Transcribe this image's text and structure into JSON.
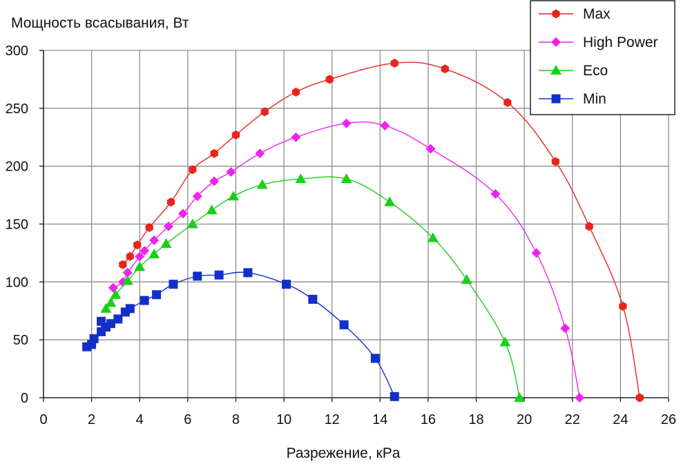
{
  "chart_data": {
    "type": "line",
    "title": "",
    "ylabel": "Мощность всасывания, Вт",
    "xlabel": "Разрежение, кPa",
    "xlim": [
      0,
      26
    ],
    "ylim": [
      0,
      300
    ],
    "x_ticks": [
      0,
      2,
      4,
      6,
      8,
      10,
      12,
      14,
      16,
      18,
      20,
      22,
      24,
      26
    ],
    "y_ticks": [
      0,
      50,
      100,
      150,
      200,
      250,
      300
    ],
    "grid": true,
    "legend_position": "top-right",
    "series": [
      {
        "name": "Max",
        "color": "#e8251a",
        "marker": "hexagon",
        "points": [
          [
            3.3,
            115
          ],
          [
            3.6,
            122
          ],
          [
            3.9,
            132
          ],
          [
            4.4,
            147
          ],
          [
            5.3,
            169
          ],
          [
            6.2,
            197
          ],
          [
            7.1,
            211
          ],
          [
            8.0,
            227
          ],
          [
            9.2,
            247
          ],
          [
            10.5,
            264
          ],
          [
            11.9,
            275
          ],
          [
            14.6,
            289
          ],
          [
            16.7,
            284
          ],
          [
            19.3,
            255
          ],
          [
            21.3,
            204
          ],
          [
            22.7,
            148
          ],
          [
            24.1,
            79
          ],
          [
            24.8,
            0
          ]
        ]
      },
      {
        "name": "High Power",
        "color": "#ee22ee",
        "marker": "diamond",
        "points": [
          [
            2.9,
            95
          ],
          [
            3.3,
            100
          ],
          [
            3.5,
            108
          ],
          [
            4.0,
            122
          ],
          [
            4.2,
            127
          ],
          [
            4.6,
            136
          ],
          [
            5.2,
            148
          ],
          [
            5.8,
            159
          ],
          [
            6.4,
            174
          ],
          [
            7.1,
            187
          ],
          [
            7.8,
            195
          ],
          [
            9.0,
            211
          ],
          [
            10.5,
            225
          ],
          [
            12.6,
            237
          ],
          [
            14.2,
            235
          ],
          [
            16.1,
            215
          ],
          [
            18.8,
            176
          ],
          [
            20.5,
            125
          ],
          [
            21.7,
            60
          ],
          [
            22.3,
            0
          ]
        ]
      },
      {
        "name": "Eco",
        "color": "#18d018",
        "marker": "triangle",
        "points": [
          [
            2.6,
            77
          ],
          [
            2.8,
            82
          ],
          [
            3.0,
            89
          ],
          [
            3.5,
            101
          ],
          [
            4.0,
            113
          ],
          [
            4.6,
            124
          ],
          [
            5.1,
            133
          ],
          [
            6.2,
            150
          ],
          [
            7.0,
            162
          ],
          [
            7.9,
            174
          ],
          [
            9.1,
            184
          ],
          [
            10.7,
            189
          ],
          [
            12.6,
            189
          ],
          [
            14.4,
            169
          ],
          [
            16.2,
            138
          ],
          [
            17.6,
            102
          ],
          [
            19.2,
            48
          ],
          [
            19.8,
            0
          ]
        ]
      },
      {
        "name": "Min",
        "color": "#1230c8",
        "marker": "square",
        "points": [
          [
            1.8,
            44
          ],
          [
            2.0,
            46
          ],
          [
            2.1,
            51
          ],
          [
            2.4,
            57
          ],
          [
            2.4,
            66
          ],
          [
            2.6,
            61
          ],
          [
            2.8,
            64
          ],
          [
            3.1,
            68
          ],
          [
            3.4,
            74
          ],
          [
            3.6,
            77
          ],
          [
            4.2,
            84
          ],
          [
            4.7,
            89
          ],
          [
            5.4,
            98
          ],
          [
            6.4,
            105
          ],
          [
            7.3,
            106
          ],
          [
            8.5,
            108
          ],
          [
            10.1,
            98
          ],
          [
            11.2,
            85
          ],
          [
            12.5,
            63
          ],
          [
            13.8,
            34
          ],
          [
            14.6,
            1
          ]
        ]
      }
    ]
  }
}
